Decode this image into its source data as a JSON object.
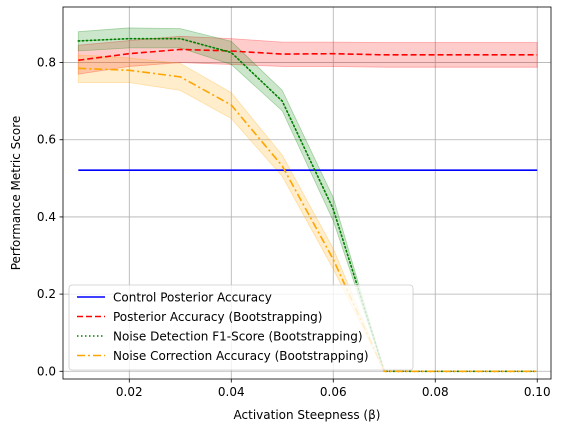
{
  "chart_data": {
    "type": "line",
    "xlabel": "Activation Steepness (β)",
    "ylabel": "Performance Metric Score",
    "xlim": [
      0.007,
      0.1027
    ],
    "ylim": [
      -0.02,
      0.944
    ],
    "xticks": [
      0.02,
      0.04,
      0.06,
      0.08,
      0.1
    ],
    "xtick_labels": [
      "0.02",
      "0.04",
      "0.06",
      "0.08",
      "0.10"
    ],
    "yticks": [
      0.0,
      0.2,
      0.4,
      0.6,
      0.8
    ],
    "ytick_labels": [
      "0.0",
      "0.2",
      "0.4",
      "0.6",
      "0.8"
    ],
    "grid": true,
    "legend_position": "lower-left",
    "x": [
      0.01,
      0.02,
      0.03,
      0.04,
      0.05,
      0.06,
      0.07,
      0.08,
      0.09,
      0.1
    ],
    "series": [
      {
        "name": "Control Posterior Accuracy",
        "color": "#0000ff",
        "style": "solid",
        "values": [
          0.521,
          0.521,
          0.521,
          0.521,
          0.521,
          0.521,
          0.521,
          0.521,
          0.521,
          0.521
        ],
        "band": null
      },
      {
        "name": "Posterior Accuracy (Bootstrapping)",
        "color": "#ff0000",
        "style": "dashed",
        "values": [
          0.806,
          0.823,
          0.834,
          0.83,
          0.822,
          0.823,
          0.82,
          0.82,
          0.82,
          0.82
        ],
        "band": {
          "lower": [
            0.77,
            0.79,
            0.8,
            0.795,
            0.79,
            0.79,
            0.788,
            0.788,
            0.788,
            0.788
          ],
          "upper": [
            0.845,
            0.857,
            0.868,
            0.862,
            0.853,
            0.853,
            0.852,
            0.852,
            0.852,
            0.852
          ]
        }
      },
      {
        "name": "Noise Detection F1-Score (Bootstrapping)",
        "color": "#008000",
        "style": "dotted",
        "values": [
          0.856,
          0.862,
          0.862,
          0.826,
          0.7,
          0.42,
          0.0,
          0.0,
          0.0,
          0.0
        ],
        "band": {
          "lower": [
            0.83,
            0.838,
            0.838,
            0.795,
            0.675,
            0.39,
            0.0,
            0.0,
            0.0,
            0.0
          ],
          "upper": [
            0.88,
            0.89,
            0.888,
            0.855,
            0.728,
            0.45,
            0.0,
            0.0,
            0.0,
            0.0
          ]
        }
      },
      {
        "name": "Noise Correction Accuracy (Bootstrapping)",
        "color": "#ffa500",
        "style": "dashdot",
        "values": [
          0.785,
          0.78,
          0.763,
          0.69,
          0.532,
          0.29,
          0.0,
          0.0,
          0.0,
          0.0
        ],
        "band": {
          "lower": [
            0.748,
            0.748,
            0.728,
            0.655,
            0.505,
            0.265,
            0.0,
            0.0,
            0.0,
            0.0
          ],
          "upper": [
            0.82,
            0.812,
            0.798,
            0.722,
            0.56,
            0.318,
            0.0,
            0.0,
            0.0,
            0.0
          ]
        }
      }
    ]
  }
}
